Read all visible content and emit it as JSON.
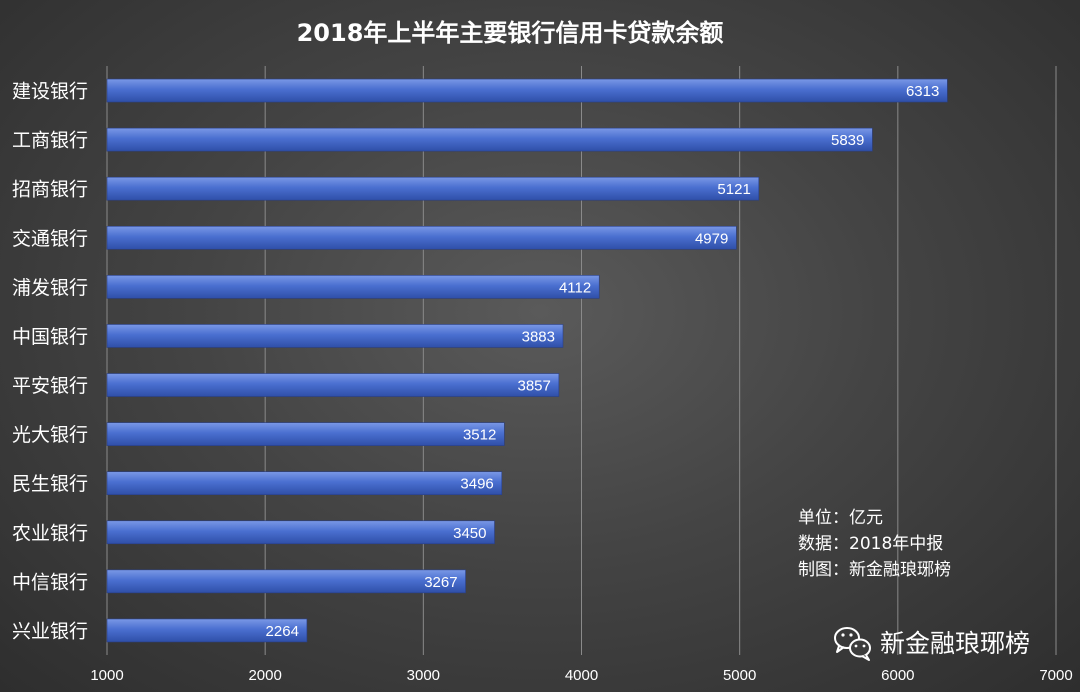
{
  "chart_data": {
    "type": "bar",
    "orientation": "horizontal",
    "title": "2018年上半年主要银行信用卡贷款余额",
    "categories": [
      "建设银行",
      "工商银行",
      "招商银行",
      "交通银行",
      "浦发银行",
      "中国银行",
      "平安银行",
      "光大银行",
      "民生银行",
      "农业银行",
      "中信银行",
      "兴业银行"
    ],
    "values": [
      6313,
      5839,
      5121,
      4979,
      4112,
      3883,
      3857,
      3512,
      3496,
      3450,
      3267,
      2264
    ],
    "xlim": [
      1000,
      7000
    ],
    "xticks": [
      1000,
      2000,
      3000,
      4000,
      5000,
      6000,
      7000
    ],
    "grid": true,
    "data_labels": true,
    "bar_color": "#4a6fd0",
    "bar_color_light": "#7a98e6",
    "bar_color_dark": "#2f4fa8"
  },
  "notes": {
    "unit": "单位：亿元",
    "source": "数据：2018年中报",
    "maker": "制图：新金融琅琊榜"
  },
  "watermark": {
    "icon": "wechat-icon",
    "text": "新金融琅琊榜"
  }
}
